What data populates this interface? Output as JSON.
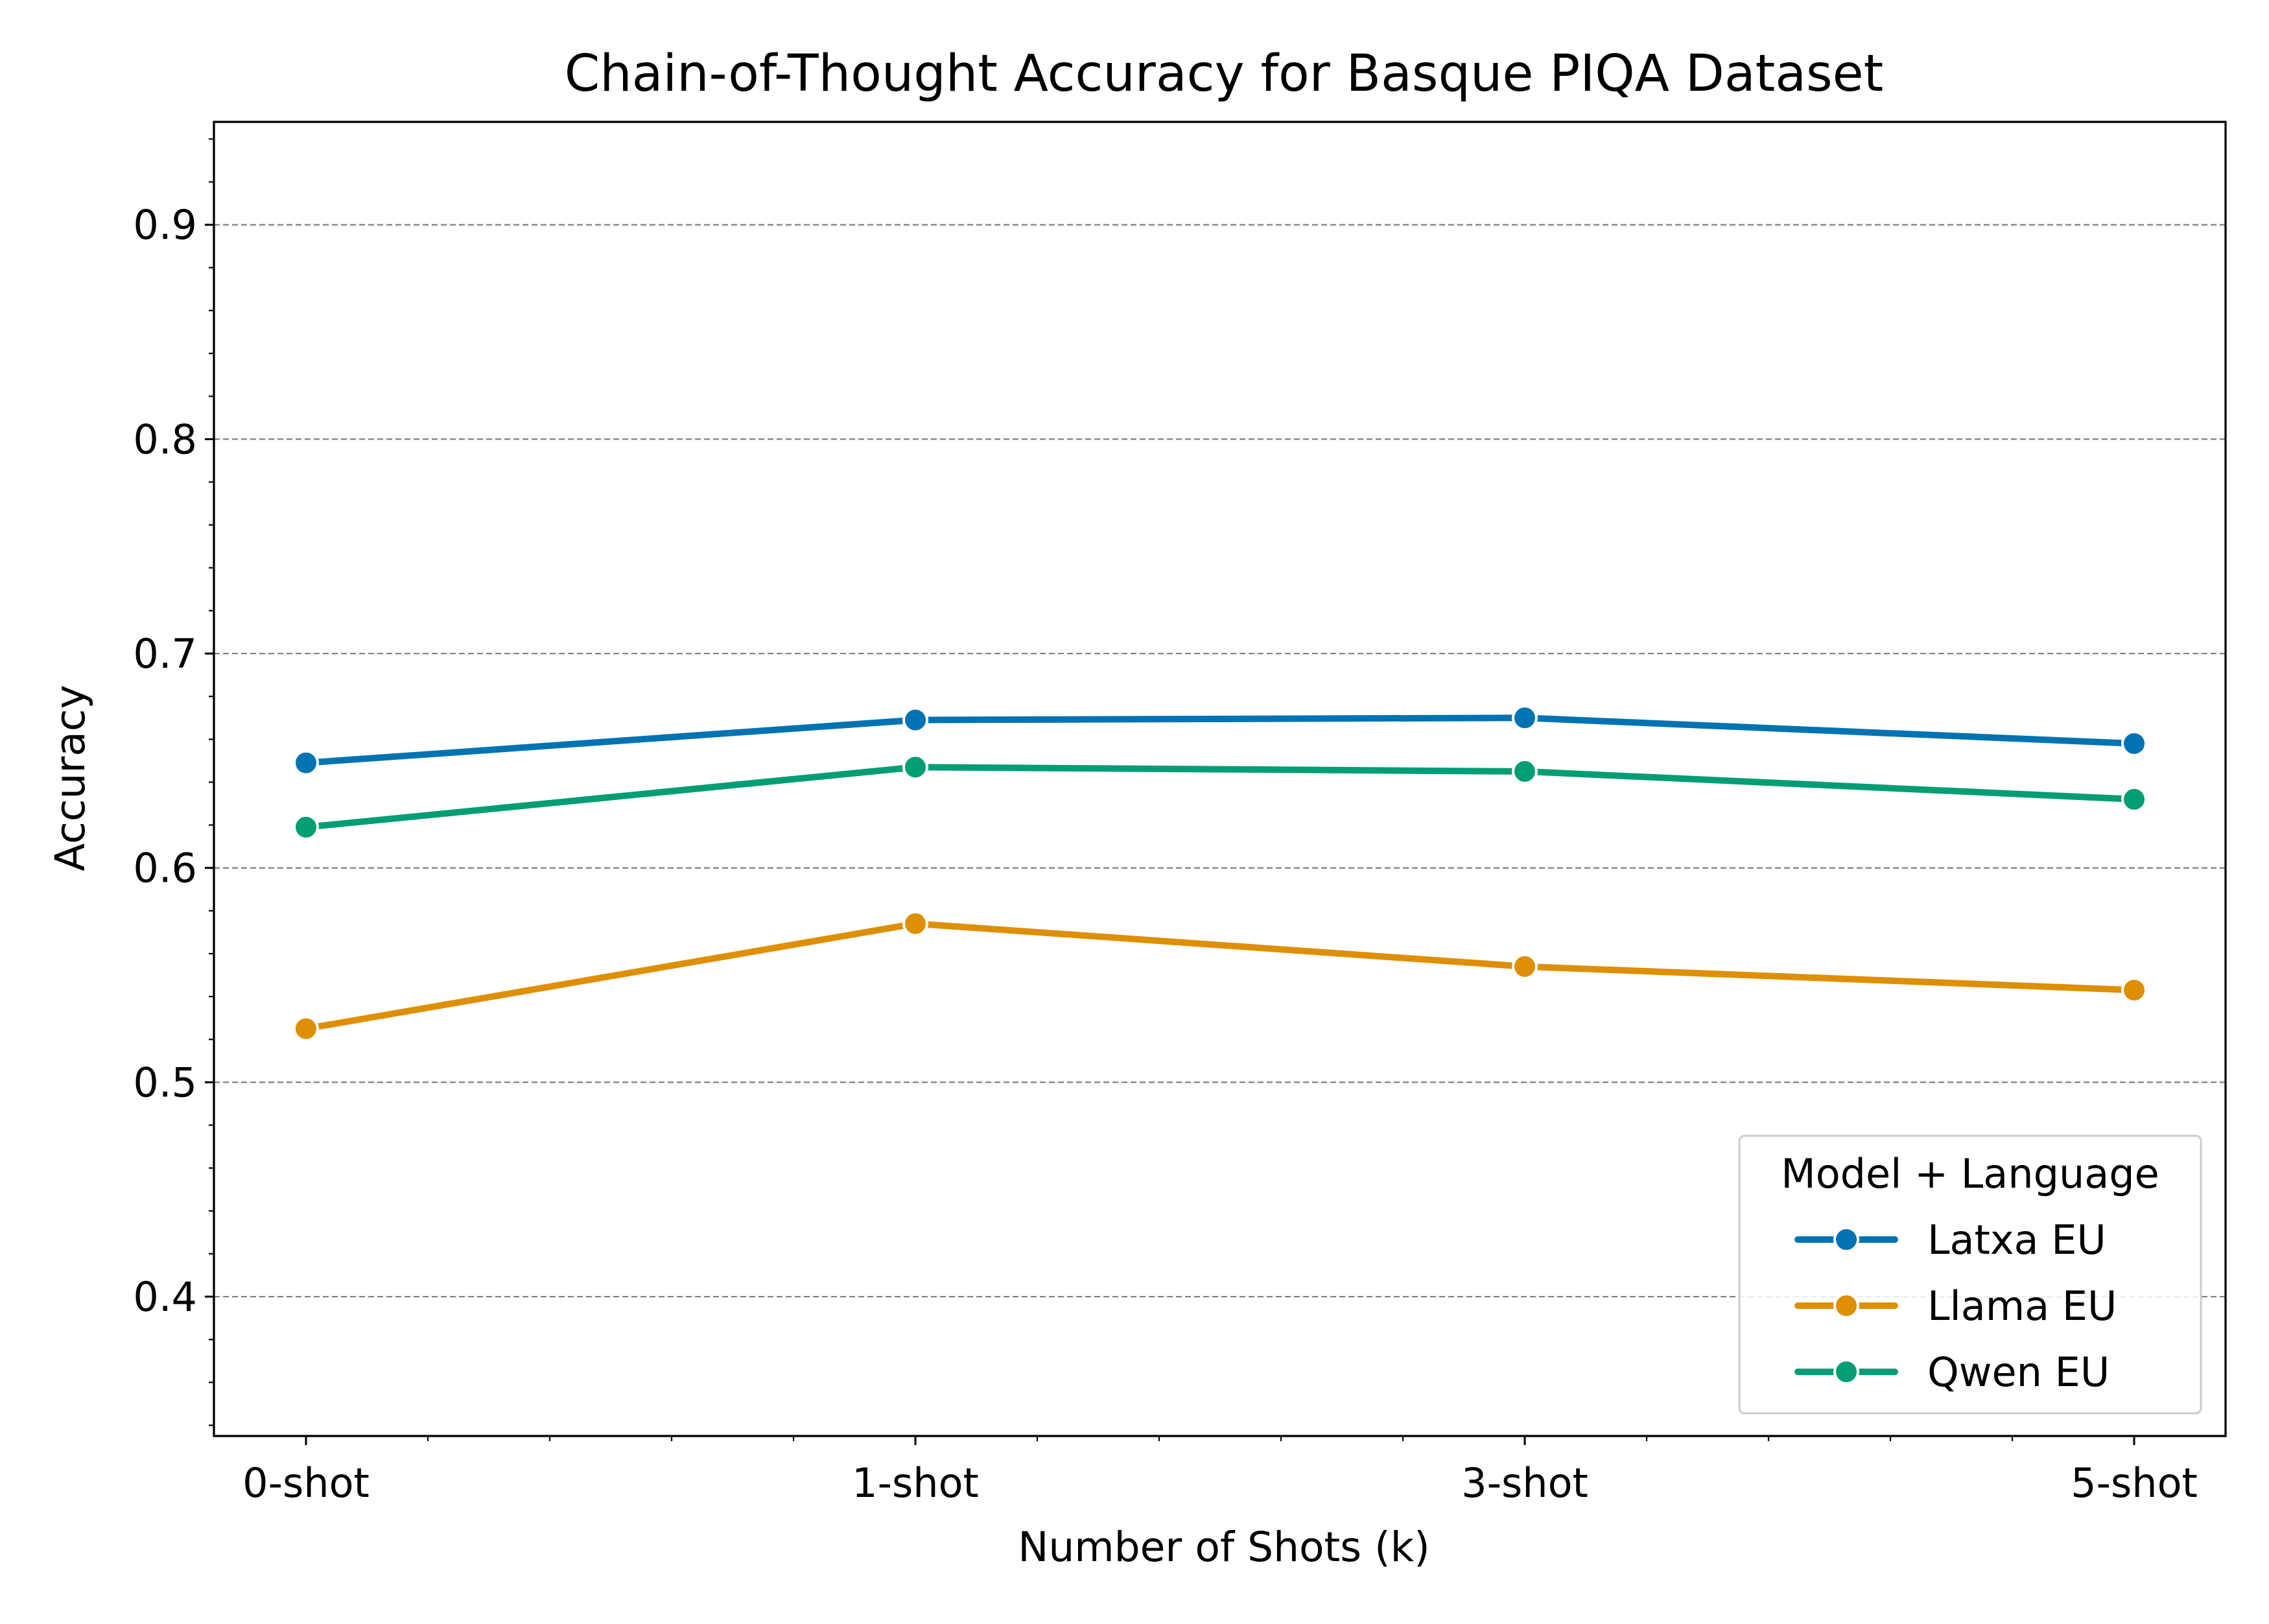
{
  "chart_data": {
    "type": "line",
    "title": "Chain-of-Thought Accuracy for Basque PIQA Dataset",
    "xlabel": "Number of Shots (k)",
    "ylabel": "Accuracy",
    "categories": [
      "0-shot",
      "1-shot",
      "3-shot",
      "5-shot"
    ],
    "ylim": [
      0.335,
      0.948
    ],
    "yticks": [
      0.4,
      0.5,
      0.6,
      0.7,
      0.8,
      0.9
    ],
    "ytick_labels": [
      "0.4",
      "0.5",
      "0.6",
      "0.7",
      "0.8",
      "0.9"
    ],
    "grid": "y-major-dashed",
    "legend": {
      "title": "Model + Language",
      "placement": "lower-right"
    },
    "series": [
      {
        "name": "Latxa EU",
        "color": "#0173b2",
        "values": [
          0.649,
          0.669,
          0.67,
          0.658
        ]
      },
      {
        "name": "Llama EU",
        "color": "#de8f05",
        "values": [
          0.525,
          0.574,
          0.554,
          0.543
        ]
      },
      {
        "name": "Qwen EU",
        "color": "#029e73",
        "values": [
          0.619,
          0.647,
          0.645,
          0.632
        ]
      }
    ]
  }
}
